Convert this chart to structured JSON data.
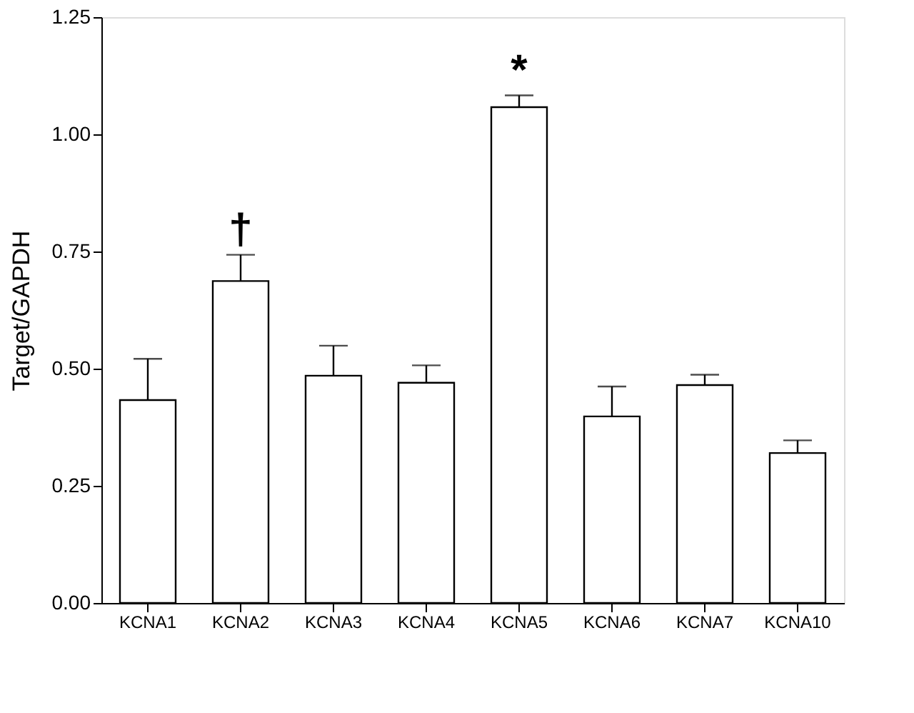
{
  "chart_data": {
    "type": "bar",
    "ylabel": "Target/GAPDH",
    "categories": [
      "KCNA1",
      "KCNA2",
      "KCNA3",
      "KCNA4",
      "KCNA5",
      "KCNA6",
      "KCNA7",
      "KCNA10"
    ],
    "values": [
      0.433,
      0.687,
      0.485,
      0.47,
      1.058,
      0.398,
      0.465,
      0.32
    ],
    "errors": [
      [
        0.433,
        0.521
      ],
      [
        0.687,
        0.743
      ],
      [
        0.485,
        0.549
      ],
      [
        0.47,
        0.507
      ],
      [
        1.058,
        1.083
      ],
      [
        0.398,
        0.462
      ],
      [
        0.465,
        0.487
      ],
      [
        0.32,
        0.347
      ]
    ],
    "color": "#ffffff",
    "ylim": [
      0,
      1.25
    ],
    "yticks": [
      {
        "value": 0,
        "label": "0.00"
      },
      0.25,
      {
        "value": 0.5,
        "label": "0.50"
      },
      0.75,
      {
        "value": 1,
        "label": "1.00"
      },
      1.25
    ],
    "annotations": [
      "†",
      "*"
    ],
    "grid": false
  }
}
